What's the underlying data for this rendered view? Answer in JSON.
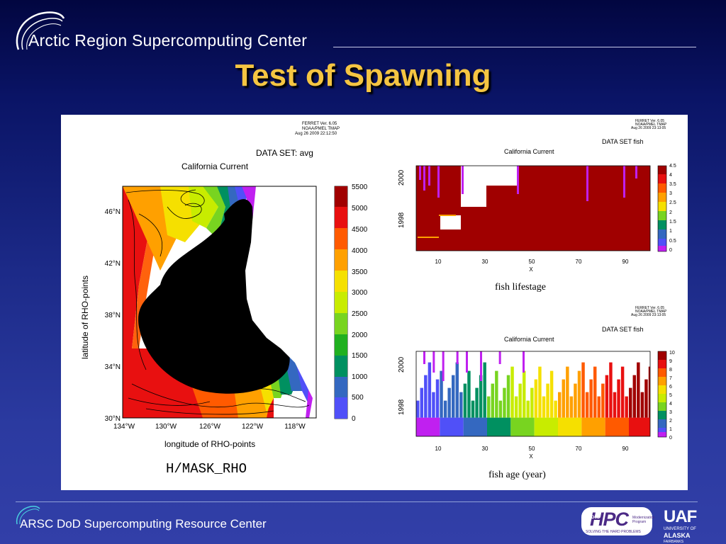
{
  "header": {
    "org_name": "Arctic Region Supercomputing Center",
    "slide_title": "Test of Spawning"
  },
  "footer": {
    "org_name": "ARSC DoD Supercomputing Resource Center",
    "hpc_logo": {
      "main": "HPC",
      "dod": "DoD",
      "program": "Modernization Program",
      "tagline": "SOLVING THE HARD PROBLEMS"
    },
    "uaf_logo": {
      "main": "UAF",
      "line1": "UNIVERSITY OF",
      "line2": "ALASKA",
      "line3": "FAIRBANKS"
    }
  },
  "left_plot": {
    "ferret_stamp": [
      "FERRET Ver. 6.05",
      "NOAA/PMEL TMAP",
      "Aug 26 2009 22:12:50"
    ],
    "dataset": "DATA SET: avg",
    "region": "California Current",
    "xlabel": "longitude of RHO-points",
    "ylabel": "latitude of RHO-points",
    "caption": "H/MASK_RHO",
    "xticks": [
      "134°W",
      "130°W",
      "126°W",
      "122°W",
      "118°W"
    ],
    "yticks": [
      "46°N",
      "42°N",
      "38°N",
      "34°N",
      "30°N"
    ],
    "colorbar_labels": [
      "5500",
      "5000",
      "4500",
      "4000",
      "3500",
      "3000",
      "2500",
      "2000",
      "1500",
      "1000",
      "500",
      "0"
    ],
    "colorbar_colors": [
      "#a00000",
      "#e81010",
      "#ff5a00",
      "#ffa000",
      "#f5e000",
      "#c8ec00",
      "#78d420",
      "#20b020",
      "#009060",
      "#3468c0",
      "#5050f8",
      "#c020f0"
    ]
  },
  "chart_data": [
    {
      "type": "heatmap",
      "title": "fish lifestage",
      "region": "California Current",
      "dataset": "DATA SET fish",
      "xlabel": "X",
      "ylabel": "",
      "xticks": [
        "10",
        "30",
        "50",
        "70",
        "90"
      ],
      "yticks": [
        "1998",
        "2000"
      ],
      "colorbar_labels": [
        "4.5",
        "4",
        "3.5",
        "3",
        "2.5",
        "2",
        "1.5",
        "1",
        "0.5",
        "0"
      ],
      "colorbar_colors": [
        "#a00000",
        "#e81010",
        "#ff5a00",
        "#ffa000",
        "#f5e000",
        "#78d420",
        "#009060",
        "#3468c0",
        "#5050f8",
        "#c020f0"
      ],
      "stamp": [
        "FERRET Ver. 6.05",
        "NOAA/PMEL TMAP",
        "Aug 26 2009 23:13:05"
      ]
    },
    {
      "type": "heatmap",
      "title": "fish age (year)",
      "region": "California Current",
      "dataset": "DATA SET fish",
      "xlabel": "X",
      "ylabel": "",
      "xticks": [
        "10",
        "30",
        "50",
        "70",
        "90"
      ],
      "yticks": [
        "1998",
        "2000"
      ],
      "colorbar_labels": [
        "10",
        "9",
        "8",
        "7",
        "6",
        "5",
        "4",
        "3",
        "2",
        "1",
        "0"
      ],
      "colorbar_colors": [
        "#a00000",
        "#e81010",
        "#ff5a00",
        "#ffa000",
        "#f5e000",
        "#c8ec00",
        "#78d420",
        "#009060",
        "#3468c0",
        "#5050f8",
        "#c020f0"
      ],
      "age_bands": [
        {
          "x_range": [
            1,
            10
          ],
          "value": 0
        },
        {
          "x_range": [
            11,
            20
          ],
          "value": 1
        },
        {
          "x_range": [
            21,
            30
          ],
          "value": 2
        },
        {
          "x_range": [
            31,
            40
          ],
          "value": 3
        },
        {
          "x_range": [
            41,
            50
          ],
          "value": 4
        },
        {
          "x_range": [
            51,
            60
          ],
          "value": 5
        },
        {
          "x_range": [
            61,
            70
          ],
          "value": 6
        },
        {
          "x_range": [
            71,
            80
          ],
          "value": 7
        },
        {
          "x_range": [
            81,
            90
          ],
          "value": 8
        },
        {
          "x_range": [
            91,
            100
          ],
          "value": 9
        }
      ],
      "stamp": [
        "FERRET Ver. 6.05",
        "NOAA/PMEL TMAP",
        "Aug 26 2009 23:13:05"
      ]
    }
  ]
}
